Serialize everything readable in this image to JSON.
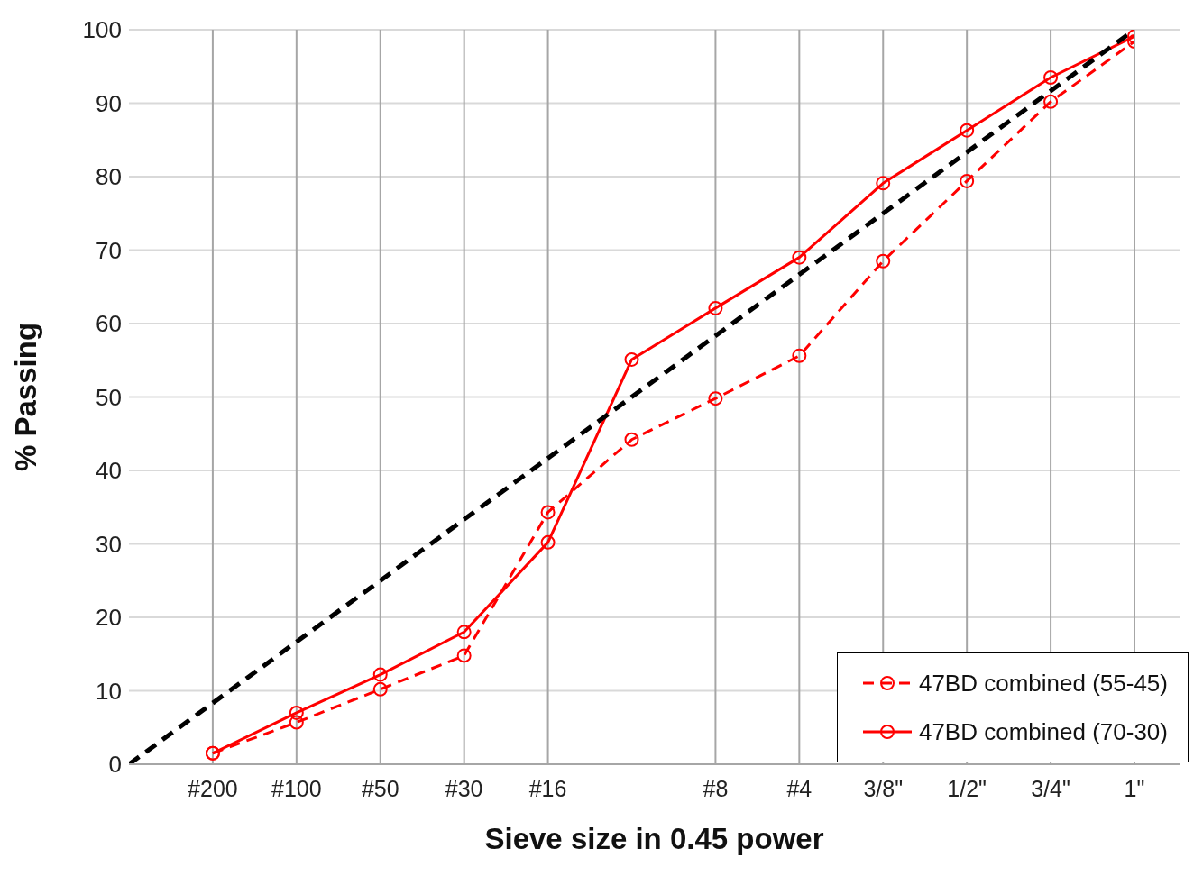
{
  "chart_data": {
    "type": "line",
    "xlabel": "Sieve size in 0.45 power",
    "ylabel": "% Passing",
    "categories": [
      null,
      "#200",
      "#100",
      "#50",
      "#30",
      "#16",
      null,
      "#8",
      "#4",
      "3/8\"",
      "1/2\"",
      "3/4\"",
      "1\""
    ],
    "series": [
      {
        "name": "47BD combined (55-45)",
        "color": "#ff0000",
        "line_style": "dashed",
        "values": [
          null,
          1.5,
          5.7,
          10.2,
          14.8,
          34.3,
          44.2,
          49.8,
          55.6,
          68.5,
          79.4,
          90.2,
          98.4
        ]
      },
      {
        "name": "47BD combined (70-30)",
        "color": "#ff0000",
        "line_style": "solid",
        "values": [
          null,
          1.5,
          7.0,
          12.2,
          18.0,
          30.2,
          55.1,
          62.1,
          69.0,
          79.1,
          86.3,
          93.5,
          99.1
        ]
      },
      {
        "color": "#000000",
        "line_style": "dashed",
        "marker": "none",
        "values": [
          0,
          null,
          null,
          null,
          null,
          null,
          null,
          null,
          null,
          null,
          null,
          null,
          100
        ]
      }
    ],
    "marker": "circle",
    "ylim": [
      0,
      100
    ],
    "yticks": [
      0,
      10,
      20,
      30,
      40,
      50,
      60,
      70,
      80,
      90,
      100
    ],
    "grid": true,
    "legend": "bottom right"
  }
}
